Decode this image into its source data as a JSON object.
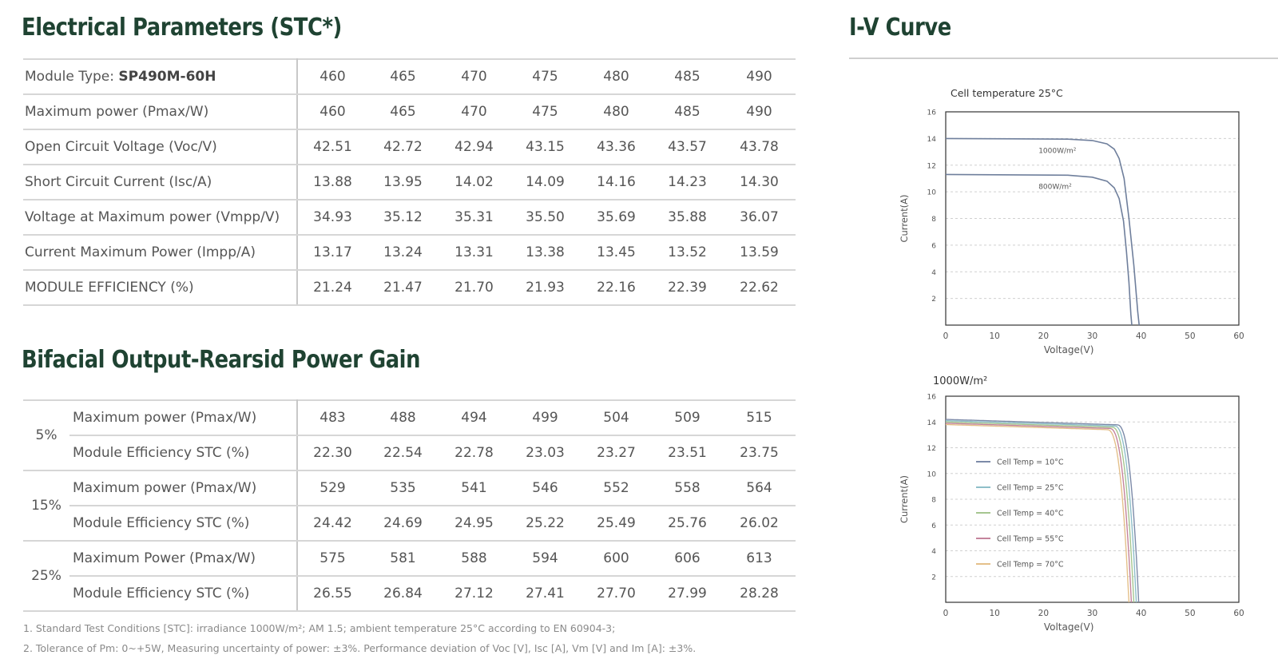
{
  "headings": {
    "electrical": "Electrical Parameters (STC*)",
    "bifacial": "Bifacial Output-Rearsid Power Gain",
    "iv": "I-V Curve"
  },
  "electrical_table": {
    "module_type_label": "Module Type: ",
    "module_type_value": "SP490M-60H",
    "rows": [
      {
        "label": "Module Type",
        "values": [
          "460",
          "465",
          "470",
          "475",
          "480",
          "485",
          "490"
        ]
      },
      {
        "label": "Maximum power (Pmax/W)",
        "values": [
          "460",
          "465",
          "470",
          "475",
          "480",
          "485",
          "490"
        ]
      },
      {
        "label": "Open Circuit Voltage (Voc/V)",
        "values": [
          "42.51",
          "42.72",
          "42.94",
          "43.15",
          "43.36",
          "43.57",
          "43.78"
        ]
      },
      {
        "label": "Short Circuit Current (Isc/A)",
        "values": [
          "13.88",
          "13.95",
          "14.02",
          "14.09",
          "14.16",
          "14.23",
          "14.30"
        ]
      },
      {
        "label": "Voltage at Maximum power (Vmpp/V)",
        "values": [
          "34.93",
          "35.12",
          "35.31",
          "35.50",
          "35.69",
          "35.88",
          "36.07"
        ]
      },
      {
        "label": "Current Maximum Power (Impp/A)",
        "values": [
          "13.17",
          "13.24",
          "13.31",
          "13.38",
          "13.45",
          "13.52",
          "13.59"
        ]
      },
      {
        "label": "MODULE EFFICIENCY (%)",
        "values": [
          "21.24",
          "21.47",
          "21.70",
          "21.93",
          "22.16",
          "22.39",
          "22.62"
        ]
      }
    ]
  },
  "bifacial_table": {
    "groups": [
      {
        "gain": "5%",
        "rows": [
          {
            "label": "Maximum power (Pmax/W)",
            "values": [
              "483",
              "488",
              "494",
              "499",
              "504",
              "509",
              "515"
            ]
          },
          {
            "label": "Module Efficiency STC (%)",
            "values": [
              "22.30",
              "22.54",
              "22.78",
              "23.03",
              "23.27",
              "23.51",
              "23.75"
            ]
          }
        ]
      },
      {
        "gain": "15%",
        "rows": [
          {
            "label": "Maximum power (Pmax/W)",
            "values": [
              "529",
              "535",
              "541",
              "546",
              "552",
              "558",
              "564"
            ]
          },
          {
            "label": "Module Efficiency STC (%)",
            "values": [
              "24.42",
              "24.69",
              "24.95",
              "25.22",
              "25.49",
              "25.76",
              "26.02"
            ]
          }
        ]
      },
      {
        "gain": "25%",
        "rows": [
          {
            "label": "Maximum Power (Pmax/W)",
            "values": [
              "575",
              "581",
              "588",
              "594",
              "600",
              "606",
              "613"
            ]
          },
          {
            "label": "Module Efficiency STC (%)",
            "values": [
              "26.55",
              "26.84",
              "27.12",
              "27.41",
              "27.70",
              "27.99",
              "28.28"
            ]
          }
        ]
      }
    ]
  },
  "footnotes": [
    "1. Standard Test Conditions [STC]: irradiance 1000W/m²;  AM 1.5;  ambient temperature 25°C according to EN 60904-3;",
    "2. Tolerance of Pm: 0~+5W, Measuring uncertainty of power: ±3%. Performance deviation of Voc [V], Isc [A], Vm [V] and Im [A]: ±3%."
  ],
  "chart_data": [
    {
      "type": "line",
      "title": "Cell temperature 25°C",
      "xlabel": "Voltage(V)",
      "ylabel": "Current(A)",
      "xlim": [
        0,
        60
      ],
      "ylim": [
        0,
        16
      ],
      "xticks": [
        "0",
        "10",
        "20",
        "30",
        "40",
        "50",
        "60"
      ],
      "yticks": [
        "2",
        "4",
        "6",
        "8",
        "10",
        "12",
        "14",
        "16"
      ],
      "grid": true,
      "line_color": "#6f7f9c",
      "series": [
        {
          "name": "1000W/m²",
          "x": [
            0,
            25,
            30,
            33,
            34.5,
            35.5,
            36.5,
            37.5,
            38.5,
            39.3,
            39.6
          ],
          "y": [
            14.0,
            13.95,
            13.85,
            13.6,
            13.2,
            12.5,
            11.0,
            8.0,
            4.5,
            1.0,
            0
          ]
        },
        {
          "name": "800W/m²",
          "x": [
            0,
            25,
            30,
            33,
            34.5,
            35.5,
            36.4,
            37.0,
            37.5,
            37.9,
            38.1
          ],
          "y": [
            11.3,
            11.25,
            11.1,
            10.8,
            10.3,
            9.5,
            7.8,
            5.5,
            3.2,
            0.8,
            0
          ]
        }
      ]
    },
    {
      "type": "line",
      "title": "1000W/m²",
      "xlabel": "Voltage(V)",
      "ylabel": "Current(A)",
      "xlim": [
        0,
        60
      ],
      "ylim": [
        0,
        16
      ],
      "xticks": [
        "0",
        "10",
        "20",
        "30",
        "40",
        "50",
        "60"
      ],
      "yticks": [
        "2",
        "4",
        "6",
        "8",
        "10",
        "12",
        "14",
        "16"
      ],
      "grid": true,
      "legend": "left-center",
      "series": [
        {
          "name": "Cell Temp = 10°C",
          "color": "#7c8aa8",
          "isc": 14.2,
          "voc": 39.5
        },
        {
          "name": "Cell Temp = 25°C",
          "color": "#8fbfc9",
          "isc": 14.1,
          "voc": 39.0
        },
        {
          "name": "Cell Temp = 40°C",
          "color": "#a6c690",
          "isc": 14.0,
          "voc": 38.5
        },
        {
          "name": "Cell Temp = 55°C",
          "color": "#c4849c",
          "isc": 13.9,
          "voc": 38.0
        },
        {
          "name": "Cell Temp = 70°C",
          "color": "#e4c08a",
          "isc": 13.8,
          "voc": 37.5
        }
      ]
    }
  ]
}
